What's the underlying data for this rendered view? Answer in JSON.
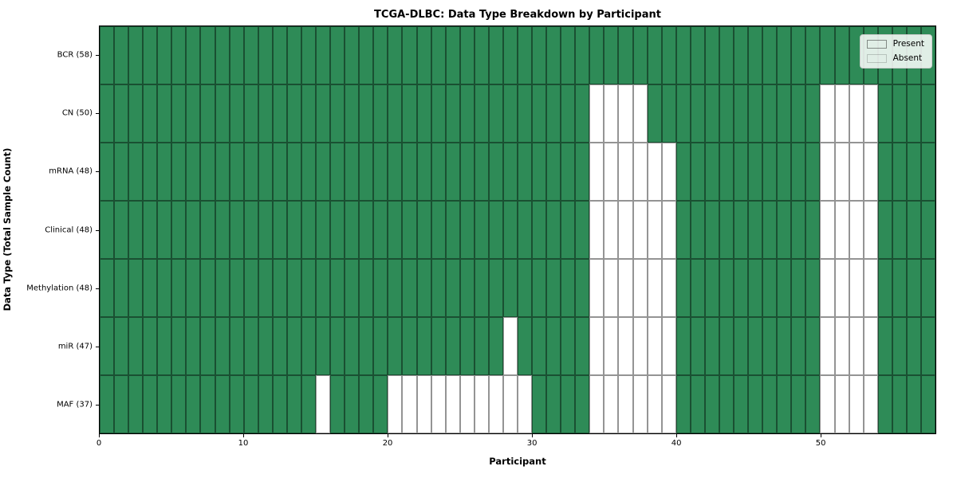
{
  "chart_data": {
    "type": "heatmap",
    "title": "TCGA-DLBC: Data Type Breakdown by Participant",
    "xlabel": "Participant",
    "ylabel": "Data Type (Total Sample Count)",
    "x_ticks": [
      0,
      10,
      20,
      30,
      40,
      50
    ],
    "xlim": [
      0,
      58
    ],
    "n_participants": 58,
    "grid": "cell-borders",
    "legend_position": "upper-right",
    "legend": [
      {
        "label": "Present",
        "color": "#2e8b57"
      },
      {
        "label": "Absent",
        "color": "#ffffff"
      }
    ],
    "colors": {
      "present": "#2e8b57",
      "absent": "#ffffff",
      "cell_edge": "rgba(0,0,0,0.42)"
    },
    "rows": [
      {
        "label": "BCR (58)",
        "data_type": "BCR",
        "present_count": 58,
        "absent_participants": []
      },
      {
        "label": "CN (50)",
        "data_type": "CN",
        "present_count": 50,
        "absent_participants": [
          34,
          35,
          36,
          37,
          50,
          51,
          52,
          53
        ]
      },
      {
        "label": "mRNA (48)",
        "data_type": "mRNA",
        "present_count": 48,
        "absent_participants": [
          34,
          35,
          36,
          37,
          38,
          39,
          50,
          51,
          52,
          53
        ]
      },
      {
        "label": "Clinical (48)",
        "data_type": "Clinical",
        "present_count": 48,
        "absent_participants": [
          34,
          35,
          36,
          37,
          38,
          39,
          50,
          51,
          52,
          53
        ]
      },
      {
        "label": "Methylation (48)",
        "data_type": "Methylation",
        "present_count": 48,
        "absent_participants": [
          34,
          35,
          36,
          37,
          38,
          39,
          50,
          51,
          52,
          53
        ]
      },
      {
        "label": "miR (47)",
        "data_type": "miR",
        "present_count": 47,
        "absent_participants": [
          28,
          34,
          35,
          36,
          37,
          38,
          39,
          50,
          51,
          52,
          53
        ]
      },
      {
        "label": "MAF (37)",
        "data_type": "MAF",
        "present_count": 37,
        "absent_participants": [
          15,
          20,
          21,
          22,
          23,
          24,
          25,
          26,
          27,
          28,
          29,
          34,
          35,
          36,
          37,
          38,
          39,
          50,
          51,
          52,
          53
        ]
      }
    ]
  }
}
